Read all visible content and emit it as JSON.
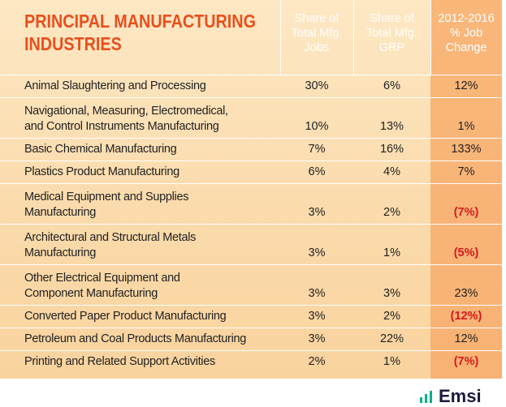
{
  "header": {
    "title": [
      "PRINCIPAL MANUFACTURING",
      "INDUSTRIES"
    ],
    "columns": [
      [
        "Share of",
        "Total Mfg.",
        "Jobs"
      ],
      [
        "Share of",
        "Total Mfg.",
        "GRP"
      ],
      [
        "2012-2016",
        "% Job",
        "Change"
      ]
    ]
  },
  "table": {
    "rows": [
      {
        "name": [
          "Animal Slaughtering and Processing"
        ],
        "cells": [
          "30%",
          "6%",
          "12%"
        ]
      },
      {
        "name": [
          "Navigational, Measuring, Electromedical,",
          "and Control Instruments Manufacturing"
        ],
        "cells": [
          "10%",
          "13%",
          "1%"
        ]
      },
      {
        "name": [
          "Basic Chemical Manufacturing"
        ],
        "cells": [
          "7%",
          "16%",
          "133%"
        ]
      },
      {
        "name": [
          "Plastics Product Manufacturing"
        ],
        "cells": [
          "6%",
          "4%",
          "7%"
        ]
      },
      {
        "name": [
          "Medical Equipment and Supplies",
          "Manufacturing"
        ],
        "cells": [
          "3%",
          "2%",
          "(7%)"
        ]
      },
      {
        "name": [
          "Architectural and Structural Metals",
          "Manufacturing"
        ],
        "cells": [
          "3%",
          "1%",
          "(5%)"
        ]
      },
      {
        "name": [
          "Other Electrical Equipment and",
          "Component Manufacturing"
        ],
        "cells": [
          "3%",
          "3%",
          "23%"
        ]
      },
      {
        "name": [
          "Converted Paper Product Manufacturing"
        ],
        "cells": [
          "3%",
          "2%",
          "(12%)"
        ]
      },
      {
        "name": [
          "Petroleum and Coal Products Manufacturing"
        ],
        "cells": [
          "3%",
          "22%",
          "12%"
        ]
      },
      {
        "name": [
          "Printing and Related Support Activities"
        ],
        "cells": [
          "2%",
          "1%",
          "(7%)"
        ]
      }
    ]
  },
  "footer": {
    "logo": "Emsi"
  }
}
